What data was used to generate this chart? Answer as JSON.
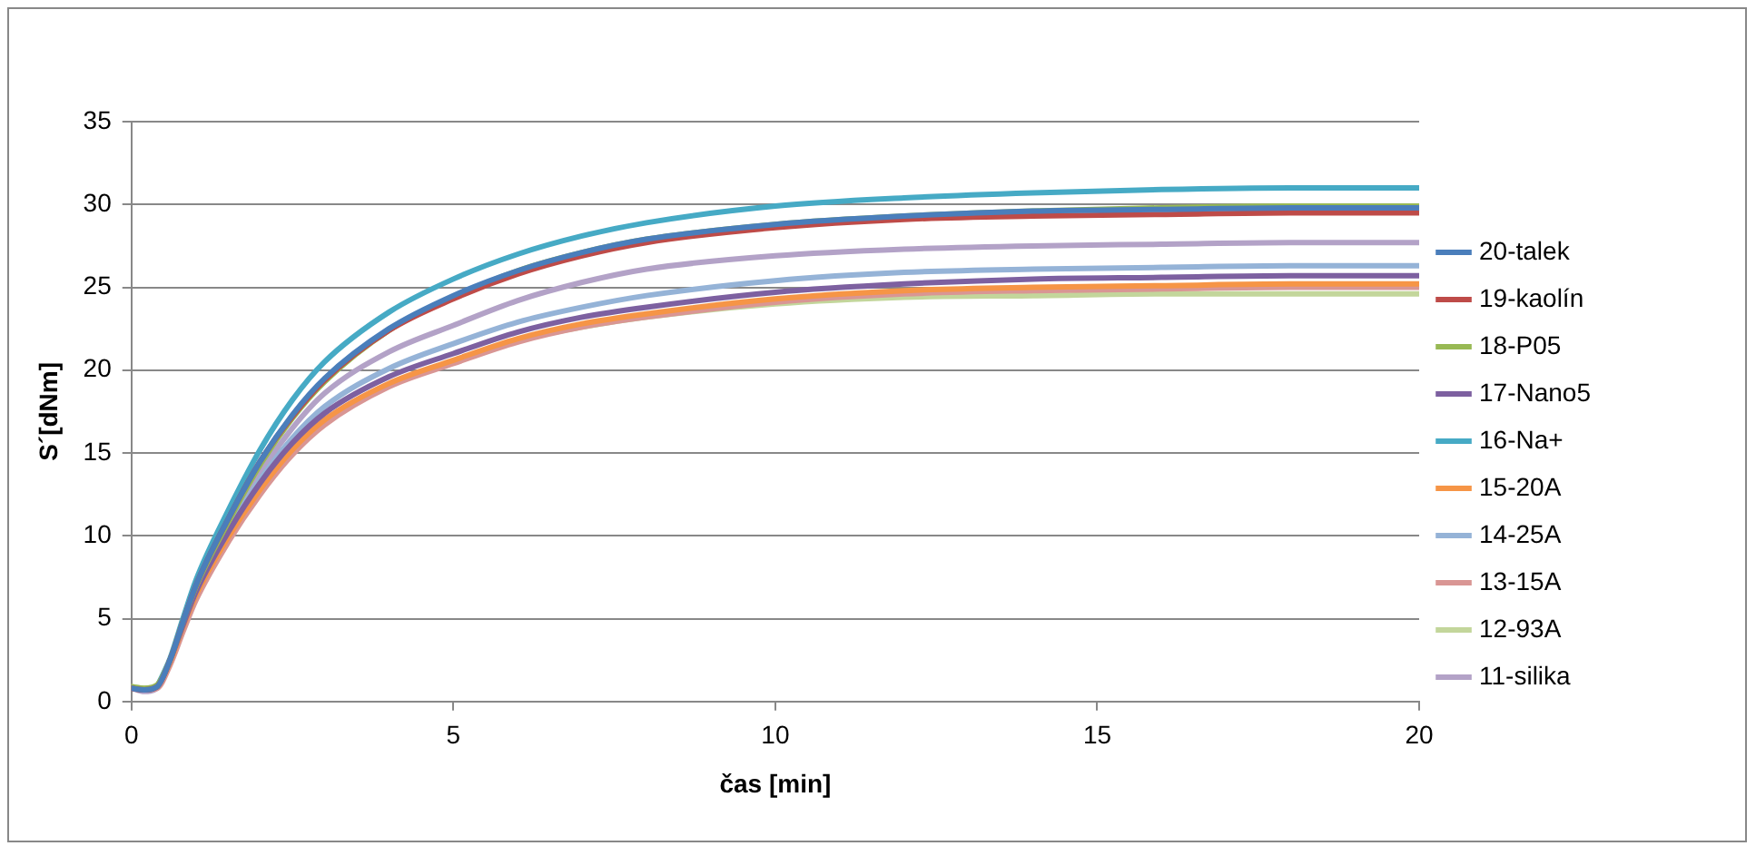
{
  "chart_data": {
    "type": "line",
    "xlabel": "čas [min]",
    "ylabel": "S´[dNm]",
    "x": [
      0,
      0.2,
      0.4,
      0.6,
      0.8,
      1,
      1.5,
      2,
      2.5,
      3,
      4,
      5,
      6,
      7,
      8,
      10,
      12,
      14,
      16,
      18,
      20
    ],
    "xlim": [
      0,
      20
    ],
    "xticks": [
      0,
      5,
      10,
      15,
      20
    ],
    "ylim": [
      0,
      35
    ],
    "yticks": [
      0,
      5,
      10,
      15,
      20,
      25,
      30,
      35
    ],
    "grid": "y",
    "legend": "right",
    "marker": "none",
    "line_style": "solid",
    "series": [
      {
        "name": "20-talek",
        "color": "#4a7ebb",
        "values": [
          0.8,
          0.7,
          0.9,
          2.5,
          4.8,
          7,
          11,
          14.5,
          17.3,
          19.5,
          22.5,
          24.5,
          26,
          27.1,
          27.9,
          28.8,
          29.3,
          29.6,
          29.7,
          29.8,
          29.8
        ]
      },
      {
        "name": "19-kaolín",
        "color": "#be4b48",
        "values": [
          0.8,
          0.7,
          0.9,
          2.5,
          4.8,
          7,
          11,
          14.5,
          17.2,
          19.4,
          22.4,
          24.3,
          25.8,
          26.9,
          27.7,
          28.6,
          29.1,
          29.3,
          29.4,
          29.5,
          29.5
        ]
      },
      {
        "name": "18-P05",
        "color": "#98b954",
        "values": [
          0.9,
          0.8,
          1,
          2.5,
          4.8,
          6.9,
          10.8,
          14.3,
          17.1,
          19.3,
          22.4,
          24.4,
          26,
          27.1,
          27.9,
          28.8,
          29.3,
          29.6,
          29.8,
          29.9,
          29.9
        ]
      },
      {
        "name": "17-Nano5",
        "color": "#7d60a0",
        "values": [
          0.8,
          0.7,
          0.9,
          2.5,
          4.6,
          6.6,
          10.2,
          13.2,
          15.6,
          17.4,
          19.6,
          21,
          22.3,
          23.2,
          23.8,
          24.7,
          25.2,
          25.5,
          25.6,
          25.7,
          25.7
        ]
      },
      {
        "name": "16-Na+",
        "color": "#46aac5",
        "values": [
          null,
          null,
          0.9,
          2.6,
          5,
          7.3,
          11.5,
          15.2,
          18.2,
          20.5,
          23.5,
          25.5,
          27,
          28.1,
          28.9,
          29.9,
          30.4,
          30.7,
          30.9,
          31,
          31
        ]
      },
      {
        "name": "15-20A",
        "color": "#f69546",
        "values": [
          0.8,
          0.7,
          0.9,
          2.4,
          4.5,
          6.4,
          9.9,
          12.8,
          15.2,
          17,
          19.2,
          20.6,
          21.9,
          22.8,
          23.4,
          24.3,
          24.8,
          25,
          25.1,
          25.2,
          25.2
        ]
      },
      {
        "name": "14-25A",
        "color": "#95b3d7",
        "values": [
          0.8,
          0.7,
          0.9,
          2.5,
          4.6,
          6.6,
          10.3,
          13.4,
          15.9,
          17.8,
          20.1,
          21.6,
          22.9,
          23.8,
          24.5,
          25.4,
          25.9,
          26.1,
          26.2,
          26.3,
          26.3
        ]
      },
      {
        "name": "13-15A",
        "color": "#d99694",
        "values": [
          0.8,
          0.7,
          0.8,
          2.2,
          4.2,
          6.1,
          9.6,
          12.5,
          14.9,
          16.7,
          19,
          20.4,
          21.7,
          22.6,
          23.2,
          24.1,
          24.6,
          24.8,
          24.9,
          25,
          25
        ]
      },
      {
        "name": "12-93A",
        "color": "#c3d69b",
        "values": [
          0.9,
          0.8,
          1,
          2.4,
          4.4,
          6.3,
          9.8,
          12.7,
          15.1,
          16.9,
          19.1,
          20.5,
          21.8,
          22.6,
          23.2,
          24,
          24.4,
          24.5,
          24.6,
          24.6,
          24.6
        ]
      },
      {
        "name": "11-silika",
        "color": "#b3a2c7",
        "values": [
          0.8,
          0.6,
          0.8,
          2.4,
          4.6,
          6.7,
          10.5,
          13.8,
          16.5,
          18.6,
          21.1,
          22.7,
          24.2,
          25.3,
          26.1,
          26.9,
          27.3,
          27.5,
          27.6,
          27.7,
          27.7
        ]
      }
    ]
  }
}
